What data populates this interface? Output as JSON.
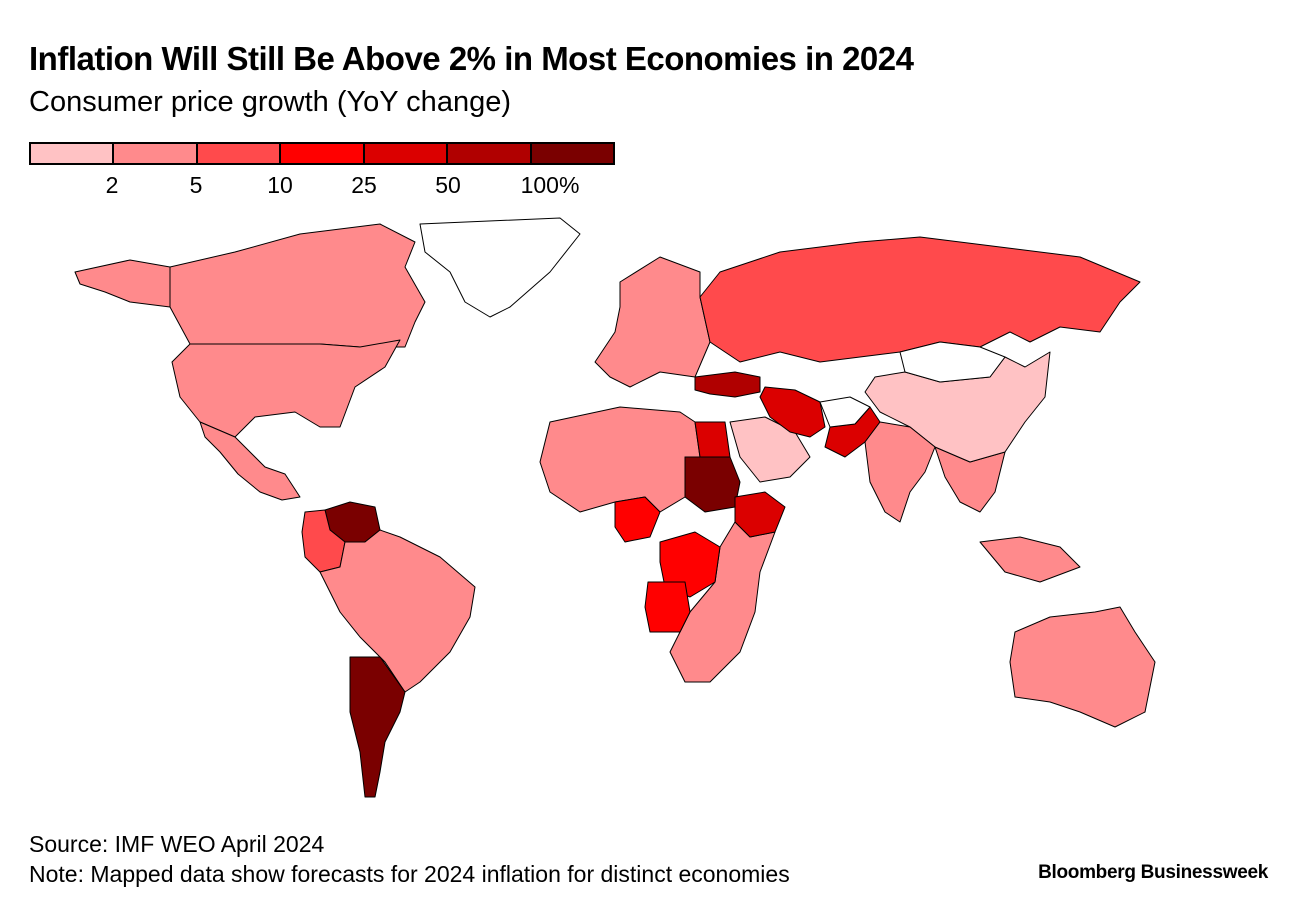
{
  "header": {
    "title": "Inflation Will Still Be Above 2% in Most Economies in 2024",
    "subtitle": "Consumer price growth (YoY change)"
  },
  "legend": {
    "bins": [
      {
        "color": "#ffc2c4"
      },
      {
        "color": "#ff8a8c"
      },
      {
        "color": "#ff4a4c"
      },
      {
        "color": "#ff0000"
      },
      {
        "color": "#db0000"
      },
      {
        "color": "#b00000"
      },
      {
        "color": "#7a0000"
      }
    ],
    "ticks": [
      "2",
      "5",
      "10",
      "25",
      "50",
      "100%"
    ]
  },
  "map": {
    "no_data_color": "#ffffff",
    "regions": [
      {
        "name": "Canada",
        "bin": 1
      },
      {
        "name": "United States",
        "bin": 1
      },
      {
        "name": "Alaska",
        "bin": 1
      },
      {
        "name": "Mexico",
        "bin": 1
      },
      {
        "name": "Greenland",
        "bin": null
      },
      {
        "name": "Venezuela",
        "bin": 6
      },
      {
        "name": "Colombia",
        "bin": 2
      },
      {
        "name": "Brazil",
        "bin": 1
      },
      {
        "name": "Argentina",
        "bin": 6
      },
      {
        "name": "Russia",
        "bin": 2
      },
      {
        "name": "China",
        "bin": 0
      },
      {
        "name": "Mongolia",
        "bin": null
      },
      {
        "name": "Turkey",
        "bin": 5
      },
      {
        "name": "Iran",
        "bin": 4
      },
      {
        "name": "Pakistan",
        "bin": 4
      },
      {
        "name": "Afghanistan",
        "bin": null
      },
      {
        "name": "Egypt",
        "bin": 4
      },
      {
        "name": "Sudan",
        "bin": 6
      },
      {
        "name": "Ethiopia",
        "bin": 4
      },
      {
        "name": "Nigeria",
        "bin": 3
      },
      {
        "name": "DR Congo",
        "bin": 3
      },
      {
        "name": "Angola",
        "bin": 3
      },
      {
        "name": "India",
        "bin": 1
      },
      {
        "name": "Australia",
        "bin": 1
      }
    ]
  },
  "footer": {
    "source": "Source: IMF WEO April 2024",
    "note": "Note: Mapped data show forecasts for 2024 inflation for distinct economies",
    "brand": "Bloomberg Businessweek"
  }
}
